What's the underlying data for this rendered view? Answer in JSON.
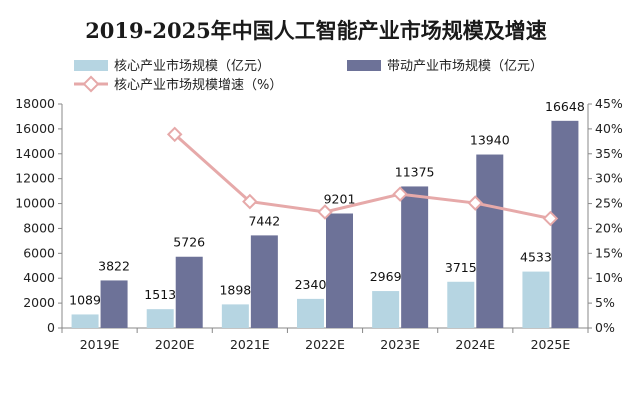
{
  "chart_data": {
    "type": "bar",
    "title": "2019-2025年中国人工智能产业市场规模及增速",
    "categories": [
      "2019E",
      "2020E",
      "2021E",
      "2022E",
      "2023E",
      "2024E",
      "2025E"
    ],
    "series": [
      {
        "name": "核心产业市场规模（亿元）",
        "type": "bar",
        "axis": "left",
        "color": "#b6d5e2",
        "values": [
          1089,
          1513,
          1898,
          2340,
          2969,
          3715,
          4533
        ]
      },
      {
        "name": "带动产业市场规模（亿元）",
        "type": "bar",
        "axis": "left",
        "color": "#6d7298",
        "values": [
          3822,
          5726,
          7442,
          9201,
          11375,
          13940,
          16648
        ]
      },
      {
        "name": "核心产业市场规模增速（%）",
        "type": "line",
        "axis": "right",
        "color": "#e6a9a9",
        "values": [
          null,
          38.9,
          25.4,
          23.3,
          26.9,
          25.1,
          22.0
        ]
      }
    ],
    "y_left": {
      "min": 0,
      "max": 18000,
      "step": 2000,
      "ticks": [
        "0",
        "2000",
        "4000",
        "6000",
        "8000",
        "10000",
        "12000",
        "14000",
        "16000",
        "18000"
      ]
    },
    "y_right": {
      "min": 0,
      "max": 45,
      "step": 5,
      "ticks": [
        "0%",
        "5%",
        "10%",
        "15%",
        "20%",
        "25%",
        "30%",
        "35%",
        "40%",
        "45%"
      ]
    },
    "legend_position": "top",
    "grid": false
  }
}
